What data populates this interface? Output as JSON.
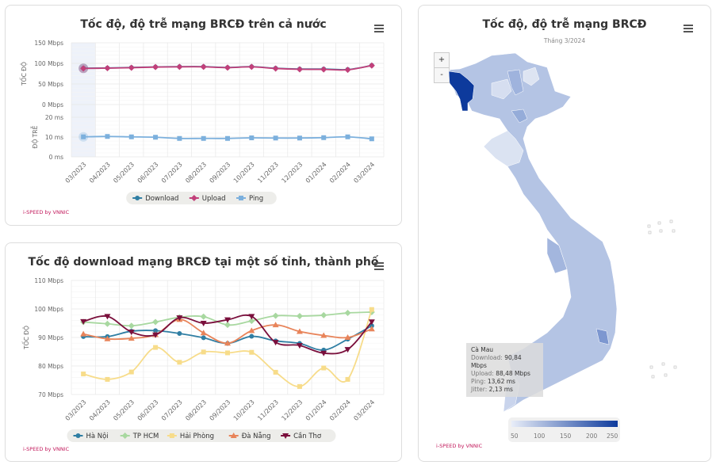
{
  "chart_data": [
    {
      "type": "line",
      "title": "Tốc độ, độ trễ mạng BRCĐ trên cả nước",
      "categories": [
        "03/2023",
        "04/2023",
        "05/2023",
        "06/2023",
        "07/2023",
        "08/2023",
        "09/2023",
        "10/2023",
        "11/2023",
        "12/2023",
        "01/2024",
        "02/2024",
        "03/2024"
      ],
      "axes": [
        {
          "label": "TỐC ĐỘ",
          "ticks": [
            "0 Mbps",
            "50 Mbps",
            "100 Mbps",
            "150 Mbps"
          ],
          "ylim": [
            0,
            150
          ],
          "unit": "Mbps"
        },
        {
          "label": "ĐỘ TRỄ",
          "ticks": [
            "0 ms",
            "10 ms",
            "20 ms"
          ],
          "ylim": [
            0,
            20
          ],
          "unit": "ms"
        }
      ],
      "series": [
        {
          "name": "Download",
          "axis": 0,
          "color": "#2f7ea3",
          "marker": "circle",
          "values": [
            88.2,
            88.8,
            90,
            91.4,
            92,
            92,
            90,
            92,
            88.2,
            86.3,
            86.3,
            85,
            95.1
          ]
        },
        {
          "name": "Upload",
          "axis": 0,
          "color": "#c2407a",
          "marker": "diamond",
          "values": [
            87.8,
            88.4,
            89.5,
            91,
            91.6,
            91.6,
            89.6,
            91.6,
            87.6,
            85.6,
            85.4,
            84.3,
            94.8
          ]
        },
        {
          "name": "Ping",
          "axis": 1,
          "color": "#7cb0dd",
          "marker": "square",
          "values": [
            10.1,
            10.3,
            10.1,
            9.9,
            9.3,
            9.3,
            9.3,
            9.6,
            9.5,
            9.5,
            9.7,
            10.1,
            9.1
          ]
        }
      ],
      "grid": true,
      "legend": "bottom",
      "credit": "i-SPEED by VNNIC"
    },
    {
      "type": "line",
      "title": "Tốc độ download mạng BRCĐ tại một số tỉnh, thành phố",
      "categories": [
        "03/2023",
        "04/2023",
        "05/2023",
        "06/2023",
        "07/2023",
        "08/2023",
        "09/2023",
        "10/2023",
        "11/2023",
        "12/2023",
        "01/2024",
        "02/2024",
        "03/2024"
      ],
      "ylabel": "TỐC ĐỘ",
      "yticks": [
        "70 Mbps",
        "80 Mbps",
        "90 Mbps",
        "100 Mbps",
        "110 Mbps"
      ],
      "ylim": [
        70,
        110
      ],
      "series": [
        {
          "name": "Hà Nội",
          "color": "#2f7ea3",
          "marker": "circle",
          "values": [
            90.3,
            90.3,
            92.2,
            92.4,
            91.4,
            89.9,
            87.9,
            90.4,
            88.8,
            87.9,
            85.6,
            89.4,
            94.1
          ]
        },
        {
          "name": "TP HCM",
          "color": "#a8d8a0",
          "marker": "diamond",
          "values": [
            95.4,
            94.8,
            94.1,
            95.4,
            97.1,
            97.3,
            94.4,
            95.8,
            97.6,
            97.5,
            97.8,
            98.6,
            98.9
          ]
        },
        {
          "name": "Hải Phòng",
          "color": "#f7dc8a",
          "marker": "square",
          "values": [
            77.2,
            75.3,
            77.9,
            86.5,
            81.3,
            84.9,
            84.6,
            84.8,
            77.8,
            72.8,
            79.3,
            75.3,
            99.8
          ]
        },
        {
          "name": "Đà Nẵng",
          "color": "#e8845a",
          "marker": "triangle",
          "values": [
            91.2,
            89.5,
            89.7,
            91,
            96.3,
            91.6,
            88,
            92.4,
            94.4,
            92.1,
            90.7,
            90,
            93
          ]
        },
        {
          "name": "Cần Thơ",
          "color": "#7a0f3c",
          "marker": "triangle-down",
          "values": [
            95.6,
            97.4,
            91.9,
            90.9,
            96.9,
            95,
            96.2,
            97.4,
            88.3,
            87.2,
            84.5,
            85.8,
            95.5
          ]
        }
      ],
      "grid": true,
      "legend": "bottom",
      "credit": "i-SPEED by VNNIC"
    }
  ],
  "map": {
    "title": "Tốc độ, độ trễ mạng BRCĐ",
    "subtitle": "Tháng 3/2024",
    "zoom_in": "+",
    "zoom_out": "-",
    "tooltip": {
      "name": "Cà Mau",
      "download_label": "Download:",
      "download": "90,84 Mbps",
      "upload_label": "Upload:",
      "upload": "88,48 Mbps",
      "ping_label": "Ping:",
      "ping": "13,62 ms",
      "jitter_label": "Jitter:",
      "jitter": "2,13 ms"
    },
    "colorscale": {
      "ticks": [
        "50",
        "100",
        "150",
        "200",
        "250"
      ],
      "min_color": "#e8edf8",
      "max_color": "#0d3a9c"
    },
    "highlight_color": "#0d3a9c",
    "credit": "i-SPEED by VNNIC"
  }
}
